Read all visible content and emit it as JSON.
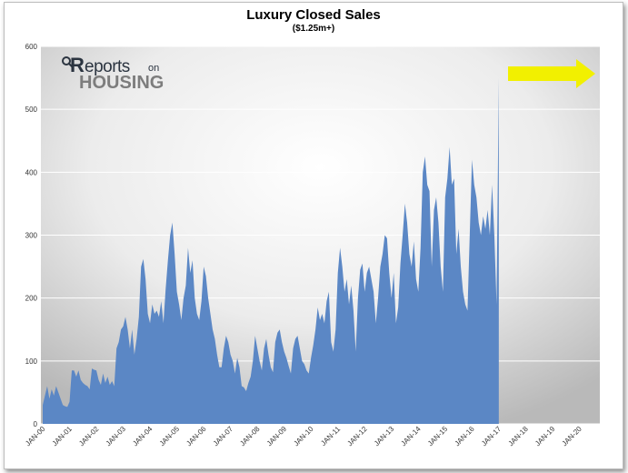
{
  "chart_data": {
    "type": "area",
    "title": "Luxury Closed Sales",
    "subtitle": "($1.25m+)",
    "xlabel": "",
    "ylabel": "",
    "ylim": [
      0,
      600
    ],
    "yticks": [
      0,
      100,
      200,
      300,
      400,
      500,
      600
    ],
    "xtick_labels": [
      "JAN-00",
      "JAN-01",
      "JAN-02",
      "JAN-03",
      "JAN-04",
      "JAN-05",
      "JAN-06",
      "JAN-07",
      "JAN-08",
      "JAN-09",
      "JAN-10",
      "JAN-11",
      "JAN-12",
      "JAN-13",
      "JAN-14",
      "JAN-15",
      "JAN-16",
      "JAN-17",
      "JAN-18",
      "JAN-19",
      "JAN-20"
    ],
    "grid": true,
    "series_color": "#5b87c5",
    "start": "JAN-00",
    "frequency": "monthly",
    "values": [
      30,
      45,
      60,
      40,
      55,
      45,
      60,
      50,
      40,
      30,
      28,
      27,
      35,
      85,
      85,
      75,
      85,
      70,
      65,
      62,
      60,
      55,
      88,
      86,
      85,
      70,
      62,
      80,
      65,
      75,
      62,
      68,
      60,
      120,
      130,
      150,
      155,
      170,
      150,
      120,
      150,
      110,
      135,
      170,
      250,
      262,
      230,
      175,
      160,
      190,
      175,
      180,
      170,
      195,
      160,
      215,
      260,
      300,
      320,
      270,
      210,
      190,
      165,
      200,
      220,
      280,
      240,
      260,
      200,
      175,
      165,
      195,
      250,
      235,
      200,
      175,
      150,
      135,
      110,
      90,
      90,
      120,
      140,
      130,
      110,
      100,
      80,
      105,
      90,
      60,
      58,
      52,
      65,
      75,
      100,
      140,
      120,
      100,
      85,
      120,
      135,
      110,
      90,
      82,
      130,
      145,
      150,
      130,
      115,
      105,
      92,
      80,
      120,
      135,
      140,
      120,
      100,
      95,
      85,
      80,
      105,
      125,
      150,
      185,
      165,
      175,
      160,
      195,
      210,
      130,
      115,
      150,
      240,
      280,
      250,
      210,
      230,
      190,
      220,
      180,
      115,
      200,
      245,
      255,
      210,
      240,
      250,
      230,
      210,
      160,
      200,
      250,
      270,
      300,
      295,
      240,
      200,
      240,
      160,
      185,
      255,
      300,
      350,
      320,
      270,
      250,
      290,
      230,
      210,
      280,
      400,
      425,
      380,
      370,
      250,
      340,
      360,
      320,
      250,
      210,
      360,
      390,
      440,
      380,
      390,
      270,
      310,
      250,
      210,
      190,
      180,
      300,
      420,
      380,
      360,
      320,
      300,
      330,
      310,
      340,
      300,
      380,
      300,
      190,
      550
    ]
  },
  "logo": {
    "r": "R",
    "reports": "eports",
    "on": "on",
    "housing": "HOUSING"
  },
  "annotation": {
    "arrow_color": "#f2f000"
  }
}
